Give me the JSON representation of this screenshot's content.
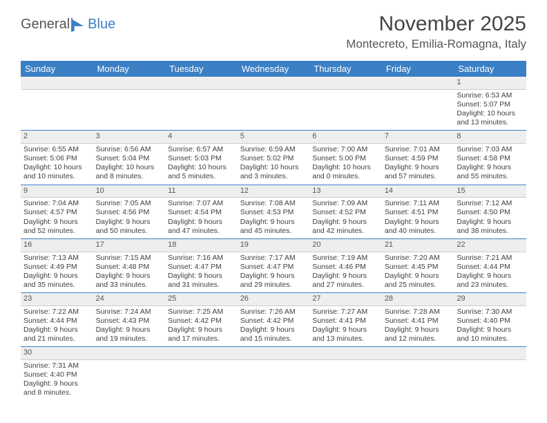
{
  "logo": {
    "word1": "General",
    "word2": "Blue",
    "brand_color": "#3b7fc4"
  },
  "title": "November 2025",
  "location": "Montecreto, Emilia-Romagna, Italy",
  "colors": {
    "header_bg": "#3b7fc4",
    "header_text": "#ffffff",
    "daynum_bg": "#eeeeee",
    "row_divider": "#3b7fc4",
    "text_color": "#404040",
    "background": "#ffffff"
  },
  "typography": {
    "title_fontsize": 30,
    "location_fontsize": 17,
    "header_fontsize": 13,
    "cell_fontsize": 10.5
  },
  "weekday_labels": [
    "Sunday",
    "Monday",
    "Tuesday",
    "Wednesday",
    "Thursday",
    "Friday",
    "Saturday"
  ],
  "weeks": [
    [
      {
        "n": "",
        "lines": []
      },
      {
        "n": "",
        "lines": []
      },
      {
        "n": "",
        "lines": []
      },
      {
        "n": "",
        "lines": []
      },
      {
        "n": "",
        "lines": []
      },
      {
        "n": "",
        "lines": []
      },
      {
        "n": "1",
        "lines": [
          "Sunrise: 6:53 AM",
          "Sunset: 5:07 PM",
          "Daylight: 10 hours",
          "and 13 minutes."
        ]
      }
    ],
    [
      {
        "n": "2",
        "lines": [
          "Sunrise: 6:55 AM",
          "Sunset: 5:06 PM",
          "Daylight: 10 hours",
          "and 10 minutes."
        ]
      },
      {
        "n": "3",
        "lines": [
          "Sunrise: 6:56 AM",
          "Sunset: 5:04 PM",
          "Daylight: 10 hours",
          "and 8 minutes."
        ]
      },
      {
        "n": "4",
        "lines": [
          "Sunrise: 6:57 AM",
          "Sunset: 5:03 PM",
          "Daylight: 10 hours",
          "and 5 minutes."
        ]
      },
      {
        "n": "5",
        "lines": [
          "Sunrise: 6:59 AM",
          "Sunset: 5:02 PM",
          "Daylight: 10 hours",
          "and 3 minutes."
        ]
      },
      {
        "n": "6",
        "lines": [
          "Sunrise: 7:00 AM",
          "Sunset: 5:00 PM",
          "Daylight: 10 hours",
          "and 0 minutes."
        ]
      },
      {
        "n": "7",
        "lines": [
          "Sunrise: 7:01 AM",
          "Sunset: 4:59 PM",
          "Daylight: 9 hours",
          "and 57 minutes."
        ]
      },
      {
        "n": "8",
        "lines": [
          "Sunrise: 7:03 AM",
          "Sunset: 4:58 PM",
          "Daylight: 9 hours",
          "and 55 minutes."
        ]
      }
    ],
    [
      {
        "n": "9",
        "lines": [
          "Sunrise: 7:04 AM",
          "Sunset: 4:57 PM",
          "Daylight: 9 hours",
          "and 52 minutes."
        ]
      },
      {
        "n": "10",
        "lines": [
          "Sunrise: 7:05 AM",
          "Sunset: 4:56 PM",
          "Daylight: 9 hours",
          "and 50 minutes."
        ]
      },
      {
        "n": "11",
        "lines": [
          "Sunrise: 7:07 AM",
          "Sunset: 4:54 PM",
          "Daylight: 9 hours",
          "and 47 minutes."
        ]
      },
      {
        "n": "12",
        "lines": [
          "Sunrise: 7:08 AM",
          "Sunset: 4:53 PM",
          "Daylight: 9 hours",
          "and 45 minutes."
        ]
      },
      {
        "n": "13",
        "lines": [
          "Sunrise: 7:09 AM",
          "Sunset: 4:52 PM",
          "Daylight: 9 hours",
          "and 42 minutes."
        ]
      },
      {
        "n": "14",
        "lines": [
          "Sunrise: 7:11 AM",
          "Sunset: 4:51 PM",
          "Daylight: 9 hours",
          "and 40 minutes."
        ]
      },
      {
        "n": "15",
        "lines": [
          "Sunrise: 7:12 AM",
          "Sunset: 4:50 PM",
          "Daylight: 9 hours",
          "and 38 minutes."
        ]
      }
    ],
    [
      {
        "n": "16",
        "lines": [
          "Sunrise: 7:13 AM",
          "Sunset: 4:49 PM",
          "Daylight: 9 hours",
          "and 35 minutes."
        ]
      },
      {
        "n": "17",
        "lines": [
          "Sunrise: 7:15 AM",
          "Sunset: 4:48 PM",
          "Daylight: 9 hours",
          "and 33 minutes."
        ]
      },
      {
        "n": "18",
        "lines": [
          "Sunrise: 7:16 AM",
          "Sunset: 4:47 PM",
          "Daylight: 9 hours",
          "and 31 minutes."
        ]
      },
      {
        "n": "19",
        "lines": [
          "Sunrise: 7:17 AM",
          "Sunset: 4:47 PM",
          "Daylight: 9 hours",
          "and 29 minutes."
        ]
      },
      {
        "n": "20",
        "lines": [
          "Sunrise: 7:19 AM",
          "Sunset: 4:46 PM",
          "Daylight: 9 hours",
          "and 27 minutes."
        ]
      },
      {
        "n": "21",
        "lines": [
          "Sunrise: 7:20 AM",
          "Sunset: 4:45 PM",
          "Daylight: 9 hours",
          "and 25 minutes."
        ]
      },
      {
        "n": "22",
        "lines": [
          "Sunrise: 7:21 AM",
          "Sunset: 4:44 PM",
          "Daylight: 9 hours",
          "and 23 minutes."
        ]
      }
    ],
    [
      {
        "n": "23",
        "lines": [
          "Sunrise: 7:22 AM",
          "Sunset: 4:44 PM",
          "Daylight: 9 hours",
          "and 21 minutes."
        ]
      },
      {
        "n": "24",
        "lines": [
          "Sunrise: 7:24 AM",
          "Sunset: 4:43 PM",
          "Daylight: 9 hours",
          "and 19 minutes."
        ]
      },
      {
        "n": "25",
        "lines": [
          "Sunrise: 7:25 AM",
          "Sunset: 4:42 PM",
          "Daylight: 9 hours",
          "and 17 minutes."
        ]
      },
      {
        "n": "26",
        "lines": [
          "Sunrise: 7:26 AM",
          "Sunset: 4:42 PM",
          "Daylight: 9 hours",
          "and 15 minutes."
        ]
      },
      {
        "n": "27",
        "lines": [
          "Sunrise: 7:27 AM",
          "Sunset: 4:41 PM",
          "Daylight: 9 hours",
          "and 13 minutes."
        ]
      },
      {
        "n": "28",
        "lines": [
          "Sunrise: 7:28 AM",
          "Sunset: 4:41 PM",
          "Daylight: 9 hours",
          "and 12 minutes."
        ]
      },
      {
        "n": "29",
        "lines": [
          "Sunrise: 7:30 AM",
          "Sunset: 4:40 PM",
          "Daylight: 9 hours",
          "and 10 minutes."
        ]
      }
    ],
    [
      {
        "n": "30",
        "lines": [
          "Sunrise: 7:31 AM",
          "Sunset: 4:40 PM",
          "Daylight: 9 hours",
          "and 8 minutes."
        ]
      },
      {
        "n": "",
        "lines": []
      },
      {
        "n": "",
        "lines": []
      },
      {
        "n": "",
        "lines": []
      },
      {
        "n": "",
        "lines": []
      },
      {
        "n": "",
        "lines": []
      },
      {
        "n": "",
        "lines": []
      }
    ]
  ]
}
